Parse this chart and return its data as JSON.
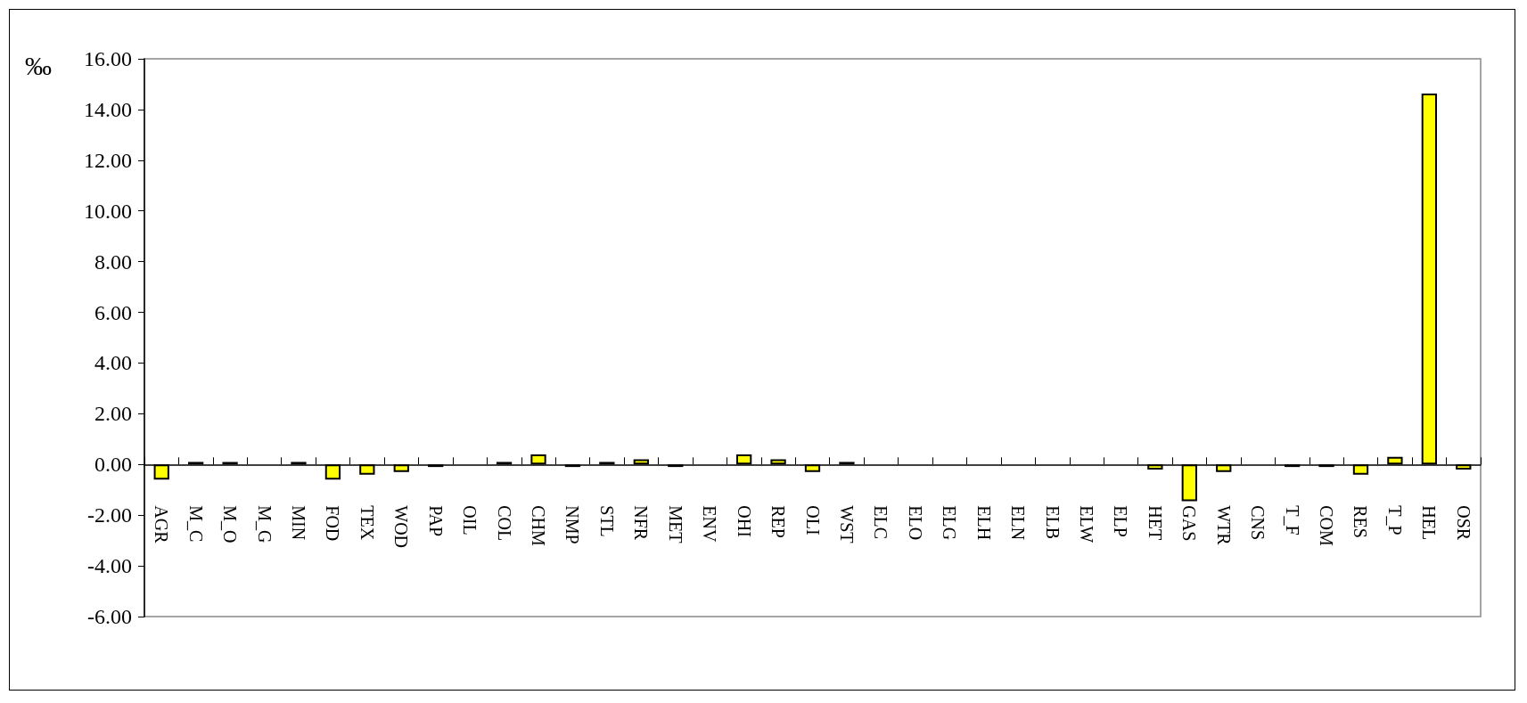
{
  "chart_data": {
    "type": "bar",
    "ylabel": "‰",
    "categories": [
      "AGR",
      "M_C",
      "M_O",
      "M_G",
      "MIN",
      "FOD",
      "TEX",
      "WOD",
      "PAP",
      "OIL",
      "COL",
      "CHM",
      "NMP",
      "STL",
      "NFR",
      "MET",
      "ENV",
      "OHI",
      "REP",
      "OLI",
      "WST",
      "ELC",
      "ELO",
      "ELG",
      "ELH",
      "ELN",
      "ELB",
      "ELW",
      "ELP",
      "HET",
      "GAS",
      "WTR",
      "CNS",
      "T_F",
      "COM",
      "RES",
      "T_P",
      "HEL",
      "OSR"
    ],
    "values": [
      -0.6,
      0.1,
      0.1,
      null,
      0.1,
      -0.6,
      -0.4,
      -0.3,
      -0.1,
      null,
      0.1,
      0.4,
      -0.1,
      0.1,
      0.2,
      -0.1,
      null,
      0.4,
      0.2,
      -0.3,
      0.1,
      null,
      null,
      null,
      null,
      null,
      null,
      null,
      null,
      -0.2,
      -1.45,
      -0.3,
      null,
      -0.1,
      -0.1,
      -0.4,
      0.3,
      14.63,
      -0.2
    ],
    "color": "#ffff00",
    "ylim": [
      -6,
      16
    ],
    "yticks": [
      {
        "value": -6,
        "label": "-6.00"
      },
      {
        "value": -4,
        "label": "-4.00"
      },
      {
        "value": -2,
        "label": "-2.00"
      },
      {
        "value": 0,
        "label": "0.00"
      },
      {
        "value": 2,
        "label": "2.00"
      },
      {
        "value": 4,
        "label": "4.00"
      },
      {
        "value": 6,
        "label": "6.00"
      },
      {
        "value": 8,
        "label": "8.00"
      },
      {
        "value": 10,
        "label": "10.00"
      },
      {
        "value": 12,
        "label": "12.00"
      },
      {
        "value": 14,
        "label": "14.00"
      },
      {
        "value": 16,
        "label": "16.00"
      }
    ],
    "grid": false
  }
}
